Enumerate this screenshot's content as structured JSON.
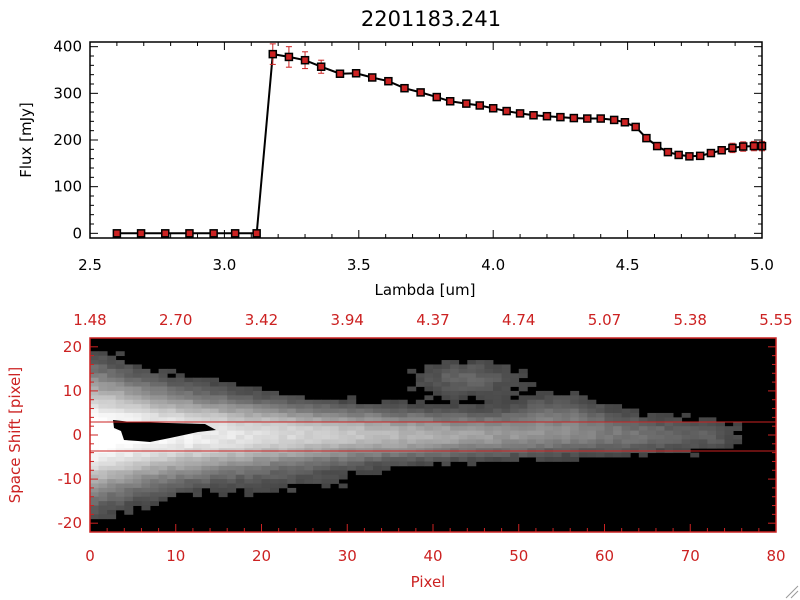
{
  "chart_data": [
    {
      "type": "line",
      "title": "2201183.241",
      "xlabel": "Lambda [um]",
      "ylabel": "Flux [mJy]",
      "xlim": [
        2.5,
        5.0
      ],
      "ylim": [
        -10,
        410
      ],
      "xticks": [
        "2.5",
        "3.0",
        "3.5",
        "4.0",
        "4.5",
        "5.0"
      ],
      "yticks": [
        "0",
        "100",
        "200",
        "300",
        "400"
      ],
      "line_color": "#000000",
      "marker_color": "#cc2222",
      "error_color": "#cc2222",
      "x": [
        2.6,
        2.69,
        2.78,
        2.87,
        2.96,
        3.04,
        3.12,
        3.18,
        3.24,
        3.3,
        3.36,
        3.43,
        3.49,
        3.55,
        3.61,
        3.67,
        3.73,
        3.79,
        3.84,
        3.9,
        3.95,
        4.0,
        4.05,
        4.1,
        4.15,
        4.2,
        4.25,
        4.3,
        4.35,
        4.4,
        4.45,
        4.49,
        4.53,
        4.57,
        4.61,
        4.65,
        4.69,
        4.73,
        4.77,
        4.81,
        4.85,
        4.89,
        4.93,
        4.97,
        5.0
      ],
      "y": [
        0,
        0,
        0,
        0,
        0,
        0,
        0,
        384,
        378,
        371,
        357,
        342,
        343,
        334,
        326,
        311,
        302,
        292,
        283,
        278,
        274,
        268,
        262,
        257,
        253,
        251,
        249,
        247,
        246,
        246,
        243,
        238,
        228,
        204,
        187,
        174,
        168,
        165,
        166,
        172,
        178,
        183,
        186,
        187,
        187
      ],
      "yerr": [
        0,
        0,
        0,
        0,
        0,
        0,
        0,
        22,
        22,
        18,
        14,
        6,
        6,
        4,
        4,
        4,
        4,
        4,
        4,
        4,
        4,
        4,
        4,
        4,
        4,
        4,
        4,
        4,
        4,
        4,
        4,
        4,
        4,
        4,
        4,
        4,
        4,
        4,
        4,
        6,
        8,
        10,
        10,
        10,
        10
      ]
    },
    {
      "type": "heatmap",
      "xlabel": "Pixel",
      "ylabel": "Space Shift [pixel]",
      "xlim": [
        0,
        80
      ],
      "ylim": [
        -22,
        22
      ],
      "xticks": [
        "0",
        "10",
        "20",
        "30",
        "40",
        "50",
        "60",
        "70",
        "80"
      ],
      "yticks": [
        "-20",
        "-10",
        "0",
        "10",
        "20"
      ],
      "top_axis_ticks": [
        "1.48",
        "2.70",
        "3.42",
        "3.94",
        "4.37",
        "4.74",
        "5.07",
        "5.38",
        "5.55"
      ],
      "axis_color": "#cc2222",
      "aperture_lines": [
        3,
        -3
      ],
      "colormap": "grayscale"
    }
  ]
}
